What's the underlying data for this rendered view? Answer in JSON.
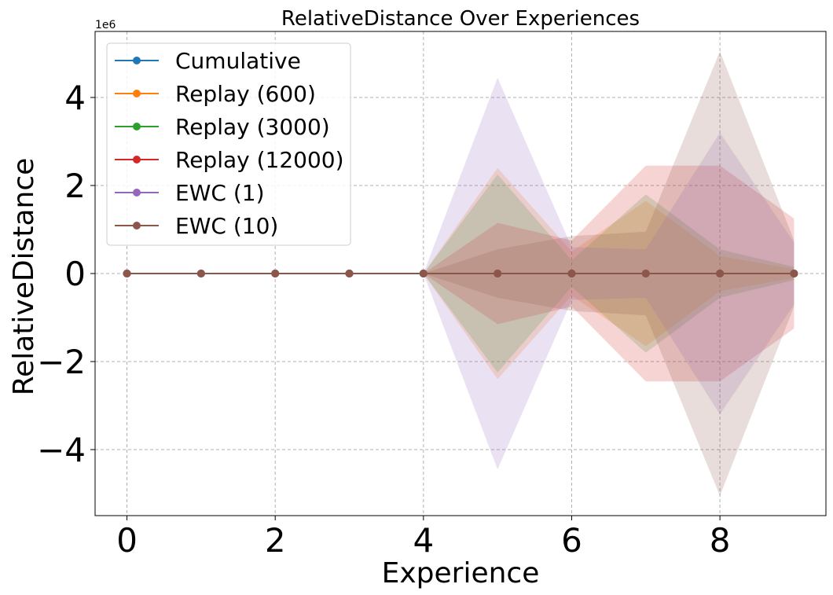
{
  "chart_data": {
    "type": "line",
    "title": "RelativeDistance Over Experiences",
    "xlabel": "Experience",
    "ylabel": "RelativeDistance",
    "y_offset_label": "1e6",
    "xlim": [
      -0.43,
      9.43
    ],
    "ylim": [
      -5.5,
      5.5
    ],
    "y_scale": 1000000,
    "x_ticks": [
      0,
      2,
      4,
      6,
      8
    ],
    "y_ticks": [
      -4,
      -2,
      0,
      2,
      4
    ],
    "y_tick_labels": [
      "−4",
      "−2",
      "0",
      "2",
      "4"
    ],
    "grid": true,
    "legend_position": "top-left",
    "x": [
      0,
      1,
      2,
      3,
      4,
      5,
      6,
      7,
      8,
      9
    ],
    "series": [
      {
        "name": "Cumulative",
        "color": "#1f77b4",
        "values": [
          0,
          0,
          0,
          0,
          0,
          0,
          0,
          0,
          0,
          0
        ],
        "band": [
          0,
          0,
          0,
          0,
          0,
          0,
          0,
          0,
          0,
          0
        ]
      },
      {
        "name": "Replay (600)",
        "color": "#ff7f0e",
        "values": [
          0,
          0,
          0,
          0,
          0,
          0,
          0,
          0,
          0,
          0
        ],
        "band": [
          0,
          0,
          0,
          0,
          0,
          2.4,
          0.5,
          1.65,
          0.4,
          0.1
        ]
      },
      {
        "name": "Replay (3000)",
        "color": "#2ca02c",
        "values": [
          0,
          0,
          0,
          0,
          0,
          0,
          0,
          0,
          0,
          0
        ],
        "band": [
          0,
          0,
          0,
          0,
          0,
          2.25,
          0.3,
          1.8,
          0.55,
          0.15
        ]
      },
      {
        "name": "Replay (12000)",
        "color": "#d62728",
        "values": [
          0,
          0,
          0,
          0,
          0,
          0,
          0,
          0,
          0,
          0
        ],
        "band": [
          0,
          0,
          0,
          0,
          0,
          1.15,
          0.75,
          2.45,
          2.45,
          1.25
        ]
      },
      {
        "name": "EWC (1)",
        "color": "#9467bd",
        "values": [
          0,
          0,
          0,
          0,
          0,
          0,
          0,
          0,
          0,
          0
        ],
        "band": [
          0,
          0,
          0,
          0,
          0,
          4.45,
          0.6,
          0.55,
          3.2,
          0.7
        ]
      },
      {
        "name": "EWC (10)",
        "color": "#8c564b",
        "values": [
          0,
          0,
          0,
          0,
          0,
          0,
          0,
          0,
          0,
          0
        ],
        "band": [
          0,
          0,
          0,
          0,
          0,
          0.55,
          0.85,
          0.95,
          5.05,
          0.75
        ]
      }
    ]
  }
}
